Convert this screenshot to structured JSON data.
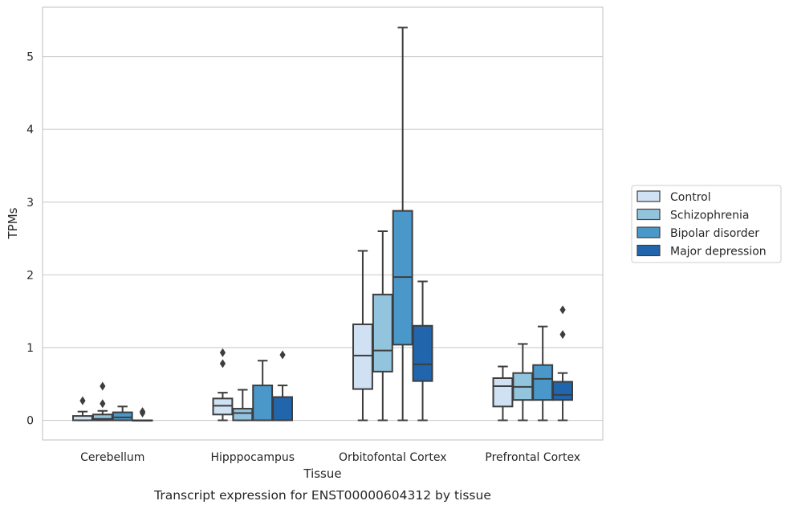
{
  "chart_data": {
    "type": "box",
    "caption": "Transcript expression for ENST00000604312 by tissue",
    "xlabel": "Tissue",
    "ylabel": "TPMs",
    "ylim": [
      -0.27,
      5.68
    ],
    "yticks": [
      0,
      1,
      2,
      3,
      4,
      5
    ],
    "grid": true,
    "legend_position": "right",
    "categories": [
      "Cerebellum",
      "Hipppocampus",
      "Orbitofontal Cortex",
      "Prefrontal Cortex"
    ],
    "series": [
      {
        "name": "Control",
        "color": "#cfe1f2",
        "boxes": [
          {
            "whislo": 0,
            "q1": 0,
            "med": 0,
            "q3": 0.06,
            "whishi": 0.12,
            "fliers": [
              0.27
            ]
          },
          {
            "whislo": 0,
            "q1": 0.08,
            "med": 0.2,
            "q3": 0.3,
            "whishi": 0.38,
            "fliers": [
              0.78,
              0.93
            ]
          },
          {
            "whislo": 0,
            "q1": 0.43,
            "med": 0.89,
            "q3": 1.32,
            "whishi": 2.33,
            "fliers": []
          },
          {
            "whislo": 0,
            "q1": 0.19,
            "med": 0.47,
            "q3": 0.58,
            "whishi": 0.74,
            "fliers": []
          }
        ]
      },
      {
        "name": "Schizophrenia",
        "color": "#93c4de",
        "boxes": [
          {
            "whislo": 0,
            "q1": 0,
            "med": 0.02,
            "q3": 0.08,
            "whishi": 0.13,
            "fliers": [
              0.23,
              0.47
            ]
          },
          {
            "whislo": 0,
            "q1": 0,
            "med": 0.1,
            "q3": 0.16,
            "whishi": 0.42,
            "fliers": []
          },
          {
            "whislo": 0,
            "q1": 0.67,
            "med": 0.96,
            "q3": 1.73,
            "whishi": 2.6,
            "fliers": []
          },
          {
            "whislo": 0,
            "q1": 0.28,
            "med": 0.46,
            "q3": 0.65,
            "whishi": 1.05,
            "fliers": []
          }
        ]
      },
      {
        "name": "Bipolar disorder",
        "color": "#4a98c9",
        "boxes": [
          {
            "whislo": 0,
            "q1": 0,
            "med": 0.04,
            "q3": 0.11,
            "whishi": 0.19,
            "fliers": []
          },
          {
            "whislo": 0,
            "q1": 0,
            "med": 0,
            "q3": 0.48,
            "whishi": 0.82,
            "fliers": []
          },
          {
            "whislo": 0,
            "q1": 1.04,
            "med": 1.97,
            "q3": 2.88,
            "whishi": 5.4,
            "fliers": []
          },
          {
            "whislo": 0,
            "q1": 0.28,
            "med": 0.57,
            "q3": 0.76,
            "whishi": 1.29,
            "fliers": []
          }
        ]
      },
      {
        "name": "Major depression",
        "color": "#2166ac",
        "boxes": [
          {
            "whislo": 0,
            "q1": 0,
            "med": 0,
            "q3": 0,
            "whishi": 0,
            "fliers": [
              0.1,
              0.12
            ]
          },
          {
            "whislo": 0,
            "q1": 0,
            "med": 0,
            "q3": 0.32,
            "whishi": 0.48,
            "fliers": [
              0.9
            ]
          },
          {
            "whislo": 0,
            "q1": 0.54,
            "med": 0.77,
            "q3": 1.3,
            "whishi": 1.91,
            "fliers": []
          },
          {
            "whislo": 0,
            "q1": 0.28,
            "med": 0.35,
            "q3": 0.53,
            "whishi": 0.65,
            "fliers": [
              1.18,
              1.52
            ]
          }
        ]
      }
    ]
  }
}
